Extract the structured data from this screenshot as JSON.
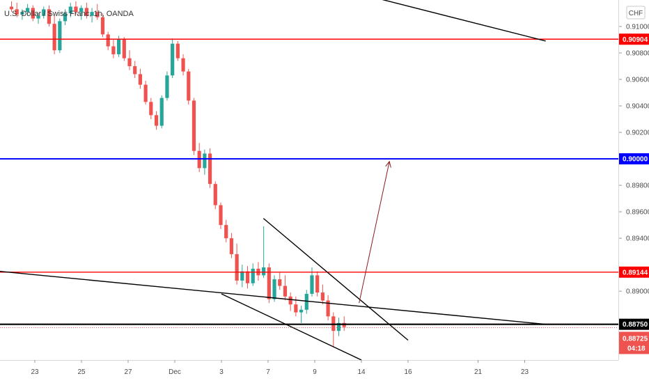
{
  "chart_data": {
    "type": "candlestick",
    "title": "U.S. Dollar / Swiss Franc, 1h, OANDA",
    "currency_button": "CHF",
    "colors": {
      "up": "#26a69a",
      "down": "#ef5350",
      "red_level": "#ff0000",
      "blue_level": "#0000ff",
      "trend": "#000000",
      "arrow": "#8b1a1a"
    },
    "price_axis": {
      "ylim": [
        0.8848,
        0.912
      ],
      "ticks": [
        {
          "value": 0.91,
          "label": "0.91000"
        },
        {
          "value": 0.908,
          "label": "0.90800"
        },
        {
          "value": 0.906,
          "label": "0.90600"
        },
        {
          "value": 0.904,
          "label": "0.90400"
        },
        {
          "value": 0.902,
          "label": "0.90200"
        },
        {
          "value": 0.898,
          "label": "0.89800"
        },
        {
          "value": 0.896,
          "label": "0.89600"
        },
        {
          "value": 0.894,
          "label": "0.89400"
        },
        {
          "value": 0.89,
          "label": "0.89000"
        }
      ]
    },
    "time_axis": {
      "xlim": [
        21.5,
        26.4
      ],
      "ticks": [
        {
          "day": 23,
          "label": "23"
        },
        {
          "day": 25,
          "label": "25"
        },
        {
          "day": 27,
          "label": "27"
        },
        {
          "day": 29,
          "label": "Dec"
        },
        {
          "day": 31,
          "label": "3"
        },
        {
          "day": 33,
          "label": "7"
        },
        {
          "day": 35,
          "label": "9"
        },
        {
          "day": 37,
          "label": "14"
        },
        {
          "day": 39,
          "label": "16"
        },
        {
          "day": 42,
          "label": "21"
        },
        {
          "day": 44,
          "label": "23"
        }
      ]
    },
    "horizontal_levels": [
      {
        "name": "resistance",
        "value": 0.90904,
        "label": "0.90904",
        "color": "#ff0000"
      },
      {
        "name": "target",
        "value": 0.9,
        "label": "0.90000",
        "color": "#0000ff"
      },
      {
        "name": "breakout",
        "value": 0.89144,
        "label": "0.89144",
        "color": "#ff0000"
      },
      {
        "name": "support",
        "value": 0.8875,
        "label": "0.88750",
        "color": "#000000"
      }
    ],
    "current_price": {
      "value": 0.88725,
      "label": "0.88725",
      "countdown": "04:18"
    },
    "trend_lines": [
      {
        "name": "long-trend-top",
        "from": {
          "day": 36.4,
          "price": 0.9127
        },
        "to": {
          "day": 44.9,
          "price": 0.9089
        }
      },
      {
        "name": "long-trend-bottom",
        "from": {
          "day": 21.5,
          "price": 0.8915
        },
        "to": {
          "day": 44.9,
          "price": 0.8875
        }
      },
      {
        "name": "wedge-upper",
        "from": {
          "day": 32.8,
          "price": 0.8955
        },
        "to": {
          "day": 39.0,
          "price": 0.8863
        }
      },
      {
        "name": "wedge-lower",
        "from": {
          "day": 31.0,
          "price": 0.8898
        },
        "to": {
          "day": 37.0,
          "price": 0.8848
        }
      }
    ],
    "projection_arrow": {
      "from": {
        "day": 36.9,
        "price": 0.8891
      },
      "to": {
        "day": 38.2,
        "price": 0.8998
      }
    },
    "ohlc": [
      [
        22.0,
        0.9115,
        0.9119,
        0.9111,
        0.9113
      ],
      [
        22.23,
        0.9113,
        0.9118,
        0.9107,
        0.9109
      ],
      [
        22.46,
        0.9109,
        0.9113,
        0.9105,
        0.9111
      ],
      [
        22.69,
        0.9111,
        0.9117,
        0.9108,
        0.9114
      ],
      [
        22.92,
        0.9114,
        0.9116,
        0.9104,
        0.9106
      ],
      [
        23.15,
        0.9106,
        0.911,
        0.9102,
        0.9108
      ],
      [
        23.38,
        0.9108,
        0.9115,
        0.9106,
        0.9113
      ],
      [
        23.61,
        0.9113,
        0.9116,
        0.91,
        0.9102
      ],
      [
        23.84,
        0.9102,
        0.9108,
        0.9079,
        0.9082
      ],
      [
        24.07,
        0.9082,
        0.9106,
        0.908,
        0.9104
      ],
      [
        24.3,
        0.9104,
        0.9113,
        0.9101,
        0.911
      ],
      [
        24.53,
        0.911,
        0.9118,
        0.9107,
        0.9115
      ],
      [
        24.76,
        0.9115,
        0.9119,
        0.9109,
        0.9111
      ],
      [
        24.99,
        0.9111,
        0.9116,
        0.9105,
        0.9114
      ],
      [
        25.22,
        0.9114,
        0.9118,
        0.9106,
        0.9108
      ],
      [
        25.45,
        0.9108,
        0.9114,
        0.9103,
        0.9111
      ],
      [
        25.68,
        0.9111,
        0.9117,
        0.9105,
        0.9107
      ],
      [
        25.91,
        0.9107,
        0.911,
        0.9092,
        0.9094
      ],
      [
        26.14,
        0.9094,
        0.9096,
        0.9082,
        0.9085
      ],
      [
        26.37,
        0.9085,
        0.909,
        0.9076,
        0.9079
      ],
      [
        26.6,
        0.9079,
        0.9093,
        0.9077,
        0.909
      ],
      [
        26.83,
        0.909,
        0.9092,
        0.9074,
        0.9076
      ],
      [
        27.06,
        0.9076,
        0.9082,
        0.9067,
        0.907
      ],
      [
        27.29,
        0.907,
        0.9074,
        0.9061,
        0.9064
      ],
      [
        27.52,
        0.9064,
        0.9068,
        0.9053,
        0.9056
      ],
      [
        27.75,
        0.9056,
        0.9059,
        0.9041,
        0.9043
      ],
      [
        27.98,
        0.9043,
        0.9046,
        0.903,
        0.9033
      ],
      [
        28.21,
        0.9033,
        0.9036,
        0.9022,
        0.9025
      ],
      [
        28.44,
        0.9025,
        0.9048,
        0.9023,
        0.9046
      ],
      [
        28.67,
        0.9046,
        0.9066,
        0.9044,
        0.9063
      ],
      [
        28.9,
        0.9063,
        0.9091,
        0.9061,
        0.9087
      ],
      [
        29.13,
        0.9087,
        0.9089,
        0.9074,
        0.9076
      ],
      [
        29.36,
        0.9076,
        0.9079,
        0.9063,
        0.9066
      ],
      [
        29.59,
        0.9066,
        0.9068,
        0.9041,
        0.9044
      ],
      [
        29.82,
        0.9044,
        0.9046,
        0.9003,
        0.9006
      ],
      [
        30.05,
        0.9006,
        0.9012,
        0.899,
        0.8993
      ],
      [
        30.28,
        0.8993,
        0.9007,
        0.8988,
        0.9004
      ],
      [
        30.51,
        0.9004,
        0.9008,
        0.8978,
        0.8981
      ],
      [
        30.74,
        0.8981,
        0.8983,
        0.8962,
        0.8965
      ],
      [
        30.97,
        0.8965,
        0.8967,
        0.8947,
        0.895
      ],
      [
        31.2,
        0.895,
        0.8954,
        0.8937,
        0.894
      ],
      [
        31.43,
        0.894,
        0.8944,
        0.8925,
        0.8928
      ],
      [
        31.66,
        0.8928,
        0.8936,
        0.8905,
        0.8908
      ],
      [
        31.89,
        0.8908,
        0.892,
        0.8903,
        0.8915
      ],
      [
        32.12,
        0.8915,
        0.8919,
        0.8902,
        0.8906
      ],
      [
        32.35,
        0.8906,
        0.8921,
        0.8904,
        0.8917
      ],
      [
        32.58,
        0.8917,
        0.8922,
        0.8908,
        0.8912
      ],
      [
        32.81,
        0.8912,
        0.8949,
        0.891,
        0.8918
      ],
      [
        33.04,
        0.8918,
        0.8921,
        0.8891,
        0.8894
      ],
      [
        33.27,
        0.8894,
        0.8912,
        0.8892,
        0.8909
      ],
      [
        33.5,
        0.8909,
        0.8914,
        0.8901,
        0.8904
      ],
      [
        33.73,
        0.8904,
        0.8912,
        0.8893,
        0.8896
      ],
      [
        33.96,
        0.8896,
        0.8899,
        0.8885,
        0.889
      ],
      [
        34.19,
        0.889,
        0.8896,
        0.8881,
        0.8884
      ],
      [
        34.42,
        0.8884,
        0.8889,
        0.8876,
        0.8886
      ],
      [
        34.65,
        0.8886,
        0.8901,
        0.8883,
        0.8898
      ],
      [
        34.88,
        0.8898,
        0.8918,
        0.8896,
        0.8912
      ],
      [
        35.11,
        0.8912,
        0.8915,
        0.8896,
        0.8899
      ],
      [
        35.34,
        0.8899,
        0.8905,
        0.889,
        0.8893
      ],
      [
        35.57,
        0.8893,
        0.8897,
        0.8878,
        0.8881
      ],
      [
        35.8,
        0.8881,
        0.8884,
        0.8858,
        0.887
      ],
      [
        36.03,
        0.887,
        0.888,
        0.8866,
        0.8876
      ],
      [
        36.26,
        0.8876,
        0.8881,
        0.887,
        0.8873
      ]
    ]
  }
}
